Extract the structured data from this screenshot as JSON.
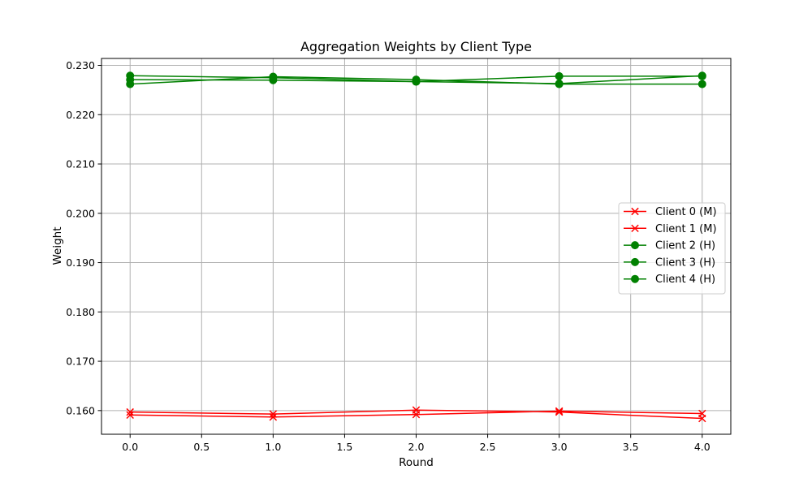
{
  "chart_data": {
    "type": "line",
    "title": "Aggregation Weights by Client Type",
    "xlabel": "Round",
    "ylabel": "Weight",
    "xlim": [
      -0.2,
      4.2
    ],
    "ylim": [
      0.1552,
      0.2314
    ],
    "xticks": [
      0.0,
      0.5,
      1.0,
      1.5,
      2.0,
      2.5,
      3.0,
      3.5,
      4.0
    ],
    "yticks": [
      0.16,
      0.17,
      0.18,
      0.19,
      0.2,
      0.21,
      0.22,
      0.23
    ],
    "xtick_labels": [
      "0.0",
      "0.5",
      "1.0",
      "1.5",
      "2.0",
      "2.5",
      "3.0",
      "3.5",
      "4.0"
    ],
    "ytick_labels": [
      "0.160",
      "0.170",
      "0.180",
      "0.190",
      "0.200",
      "0.210",
      "0.220",
      "0.230"
    ],
    "grid": true,
    "legend_position": "center-right",
    "x": [
      0,
      1,
      2,
      3,
      4
    ],
    "series": [
      {
        "name": "Client 0 (M)",
        "values": [
          0.1597,
          0.1593,
          0.1601,
          0.1597,
          0.1584
        ],
        "color": "#ff0000",
        "marker": "x"
      },
      {
        "name": "Client 1 (M)",
        "values": [
          0.1591,
          0.1587,
          0.1592,
          0.1599,
          0.1594
        ],
        "color": "#ff0000",
        "marker": "x"
      },
      {
        "name": "Client 2 (H)",
        "values": [
          0.2271,
          0.227,
          0.2267,
          0.2278,
          0.2278
        ],
        "color": "#008000",
        "marker": "o"
      },
      {
        "name": "Client 3 (H)",
        "values": [
          0.2262,
          0.2277,
          0.2271,
          0.2262,
          0.2262
        ],
        "color": "#008000",
        "marker": "o"
      },
      {
        "name": "Client 4 (H)",
        "values": [
          0.2279,
          0.2275,
          0.2267,
          0.2263,
          0.2279
        ],
        "color": "#008000",
        "marker": "o"
      }
    ]
  }
}
